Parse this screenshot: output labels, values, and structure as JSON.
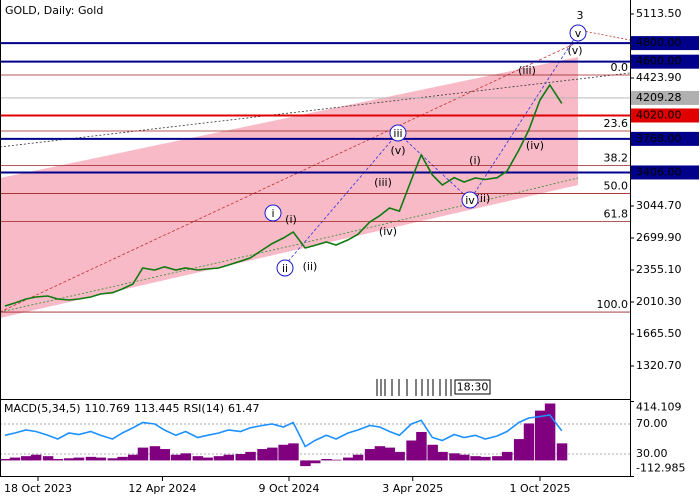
{
  "chart_data": [
    {
      "type": "line",
      "title": "GOLD, Daily:  Gold",
      "color": "#107a10",
      "x": [
        "2023-09-01",
        "2023-09-15",
        "2023-10-01",
        "2023-10-15",
        "2023-11-01",
        "2023-11-15",
        "2023-12-01",
        "2023-12-15",
        "2024-01-01",
        "2024-01-15",
        "2024-02-01",
        "2024-02-15",
        "2024-03-01",
        "2024-03-15",
        "2024-04-01",
        "2024-04-15",
        "2024-05-01",
        "2024-05-15",
        "2024-06-01",
        "2024-06-15",
        "2024-07-01",
        "2024-07-15",
        "2024-08-01",
        "2024-08-15",
        "2024-09-01",
        "2024-09-15",
        "2024-10-01",
        "2024-10-15",
        "2024-11-01",
        "2024-11-15",
        "2024-12-01",
        "2024-12-15",
        "2025-01-01",
        "2025-01-15",
        "2025-02-01",
        "2025-02-15",
        "2025-03-01",
        "2025-03-15",
        "2025-04-01",
        "2025-04-15",
        "2025-05-01",
        "2025-05-15",
        "2025-06-01",
        "2025-06-15",
        "2025-07-01",
        "2025-07-15",
        "2025-08-01",
        "2025-08-15",
        "2025-09-01",
        "2025-09-15",
        "2025-10-01",
        "2025-10-15",
        "2025-11-01"
      ],
      "values": [
        1967,
        2000,
        2043,
        2064,
        2075,
        2043,
        2032,
        2043,
        2064,
        2097,
        2110,
        2150,
        2204,
        2377,
        2355,
        2390,
        2355,
        2377,
        2355,
        2366,
        2377,
        2409,
        2450,
        2485,
        2571,
        2640,
        2700,
        2765,
        2592,
        2620,
        2657,
        2625,
        2679,
        2740,
        2872,
        2940,
        3023,
        2990,
        3325,
        3594,
        3379,
        3271,
        3350,
        3303,
        3346,
        3330,
        3350,
        3420,
        3648,
        3864,
        4187,
        4348,
        4150
      ],
      "xlim": [
        "2023-08-25",
        "2026-02-06"
      ],
      "xticks": [
        {
          "value": "2023-10-18",
          "label": "18 Oct 2023"
        },
        {
          "value": "2024-04-12",
          "label": "12 Apr 2024"
        },
        {
          "value": "2024-10-09",
          "label": "9 Oct 2024"
        },
        {
          "value": "2025-04-03",
          "label": "3 Apr 2025"
        },
        {
          "value": "2025-10-01",
          "label": "1 Oct 2025"
        }
      ],
      "ylim": [
        975.9,
        5264.4
      ],
      "yticks": [
        {
          "value": 5113.5,
          "label": "5113.50"
        },
        {
          "value": 4423.9,
          "label": "4423.90"
        },
        {
          "value": 3044.7,
          "label": "3044.70"
        },
        {
          "value": 2699.9,
          "label": "2699.90"
        },
        {
          "value": 2355.1,
          "label": "2355.10"
        },
        {
          "value": 2010.3,
          "label": "2010.30"
        },
        {
          "value": 1665.5,
          "label": "1665.50"
        },
        {
          "value": 1320.7,
          "label": "1320.70"
        }
      ],
      "levels": [
        {
          "value": 4800,
          "label": "4800.00",
          "color": "#00008b"
        },
        {
          "value": 4600,
          "label": "4600.00",
          "color": "#00008b"
        },
        {
          "value": 4020,
          "label": "4020.00",
          "color": "#e00000"
        },
        {
          "value": 3768,
          "label": "3768.00",
          "color": "#00008b"
        },
        {
          "value": 3406,
          "label": "3406.00",
          "color": "#00008b"
        }
      ],
      "current_price": {
        "value": 4209.28,
        "label": "4209.28",
        "color": "#b0b0b0"
      },
      "fibonacci": {
        "color": "#9b2020",
        "levels": [
          {
            "value": 4456,
            "label": "0.0"
          },
          {
            "value": 3853,
            "label": "23.6"
          },
          {
            "value": 3480,
            "label": "38.2"
          },
          {
            "value": 3179,
            "label": "50.0"
          },
          {
            "value": 2878,
            "label": "61.8"
          },
          {
            "value": 1902,
            "label": "100.0"
          }
        ]
      },
      "annotations": [
        {
          "text": "3",
          "color": "#d03030",
          "circled": false
        },
        {
          "text": "v",
          "color": "#1a1acc",
          "circled": true
        },
        {
          "text": "(v)",
          "color": "#d03030",
          "circled": false
        },
        {
          "text": "(iii)",
          "color": "#d03030",
          "circled": false
        },
        {
          "text": "(iv)",
          "color": "#d03030",
          "circled": false
        },
        {
          "text": "(i)",
          "color": "#d03030",
          "circled": false
        },
        {
          "text": "(ii)",
          "color": "#d03030",
          "circled": false
        },
        {
          "text": "iv",
          "color": "#1a1acc",
          "circled": true
        },
        {
          "text": "iii",
          "color": "#1a1acc",
          "circled": true
        },
        {
          "text": "(v)",
          "color": "#d03030",
          "circled": false
        },
        {
          "text": "(iii)",
          "color": "#d03030",
          "circled": false
        },
        {
          "text": "(iv)",
          "color": "#d03030",
          "circled": false
        },
        {
          "text": "i",
          "color": "#1a1acc",
          "circled": true
        },
        {
          "text": "(i)",
          "color": "#d03030",
          "circled": false
        },
        {
          "text": "ii",
          "color": "#1a1acc",
          "circled": true
        },
        {
          "text": "(ii)",
          "color": "#d03030",
          "circled": false
        }
      ],
      "time_label": "18:30"
    },
    {
      "type": "indicator",
      "title": "MACD(5,34,5)",
      "macd_main": 110.769,
      "macd_signal": 113.445,
      "rsi_title": "RSI(14)",
      "rsi_value": 61.47,
      "x": [
        "2023-09-01",
        "2023-09-15",
        "2023-10-01",
        "2023-10-15",
        "2023-11-01",
        "2023-11-15",
        "2023-12-01",
        "2023-12-15",
        "2024-01-01",
        "2024-01-15",
        "2024-02-01",
        "2024-02-15",
        "2024-03-01",
        "2024-03-15",
        "2024-04-01",
        "2024-04-15",
        "2024-05-01",
        "2024-05-15",
        "2024-06-01",
        "2024-06-15",
        "2024-07-01",
        "2024-07-15",
        "2024-08-01",
        "2024-08-15",
        "2024-09-01",
        "2024-09-15",
        "2024-10-01",
        "2024-10-15",
        "2024-11-01",
        "2024-11-15",
        "2024-12-01",
        "2024-12-15",
        "2025-01-01",
        "2025-01-15",
        "2025-02-01",
        "2025-02-15",
        "2025-03-01",
        "2025-03-15",
        "2025-04-01",
        "2025-04-15",
        "2025-05-01",
        "2025-05-15",
        "2025-06-01",
        "2025-06-15",
        "2025-07-01",
        "2025-07-15",
        "2025-08-01",
        "2025-08-15",
        "2025-09-01",
        "2025-09-15",
        "2025-10-01",
        "2025-10-15",
        "2025-11-01"
      ],
      "histogram": {
        "color": "#800080",
        "values": [
          10,
          20,
          30,
          40,
          30,
          10,
          15,
          20,
          25,
          20,
          15,
          25,
          40,
          90,
          100,
          80,
          40,
          50,
          30,
          20,
          30,
          40,
          45,
          60,
          80,
          90,
          110,
          120,
          -40,
          -20,
          10,
          5,
          20,
          40,
          80,
          100,
          90,
          60,
          140,
          200,
          110,
          60,
          50,
          40,
          30,
          25,
          30,
          60,
          150,
          260,
          350,
          400,
          120
        ]
      },
      "rsi": {
        "color": "#1e90ff",
        "values": [
          55,
          58,
          62,
          60,
          55,
          50,
          58,
          56,
          60,
          55,
          50,
          58,
          65,
          72,
          70,
          62,
          55,
          60,
          52,
          55,
          58,
          62,
          60,
          65,
          68,
          70,
          66,
          72,
          40,
          48,
          55,
          50,
          58,
          62,
          68,
          66,
          60,
          55,
          70,
          75,
          52,
          48,
          56,
          52,
          55,
          50,
          54,
          60,
          72,
          78,
          80,
          82,
          61
        ]
      },
      "ylim": [
        -112.985,
        414.109
      ],
      "yticks": [
        414.109,
        -112.985
      ],
      "rsi_lim": [
        0,
        100
      ],
      "rsi_ticks": [
        {
          "value": 70,
          "label": "70.00"
        },
        {
          "value": 30,
          "label": "30.00"
        }
      ]
    }
  ]
}
